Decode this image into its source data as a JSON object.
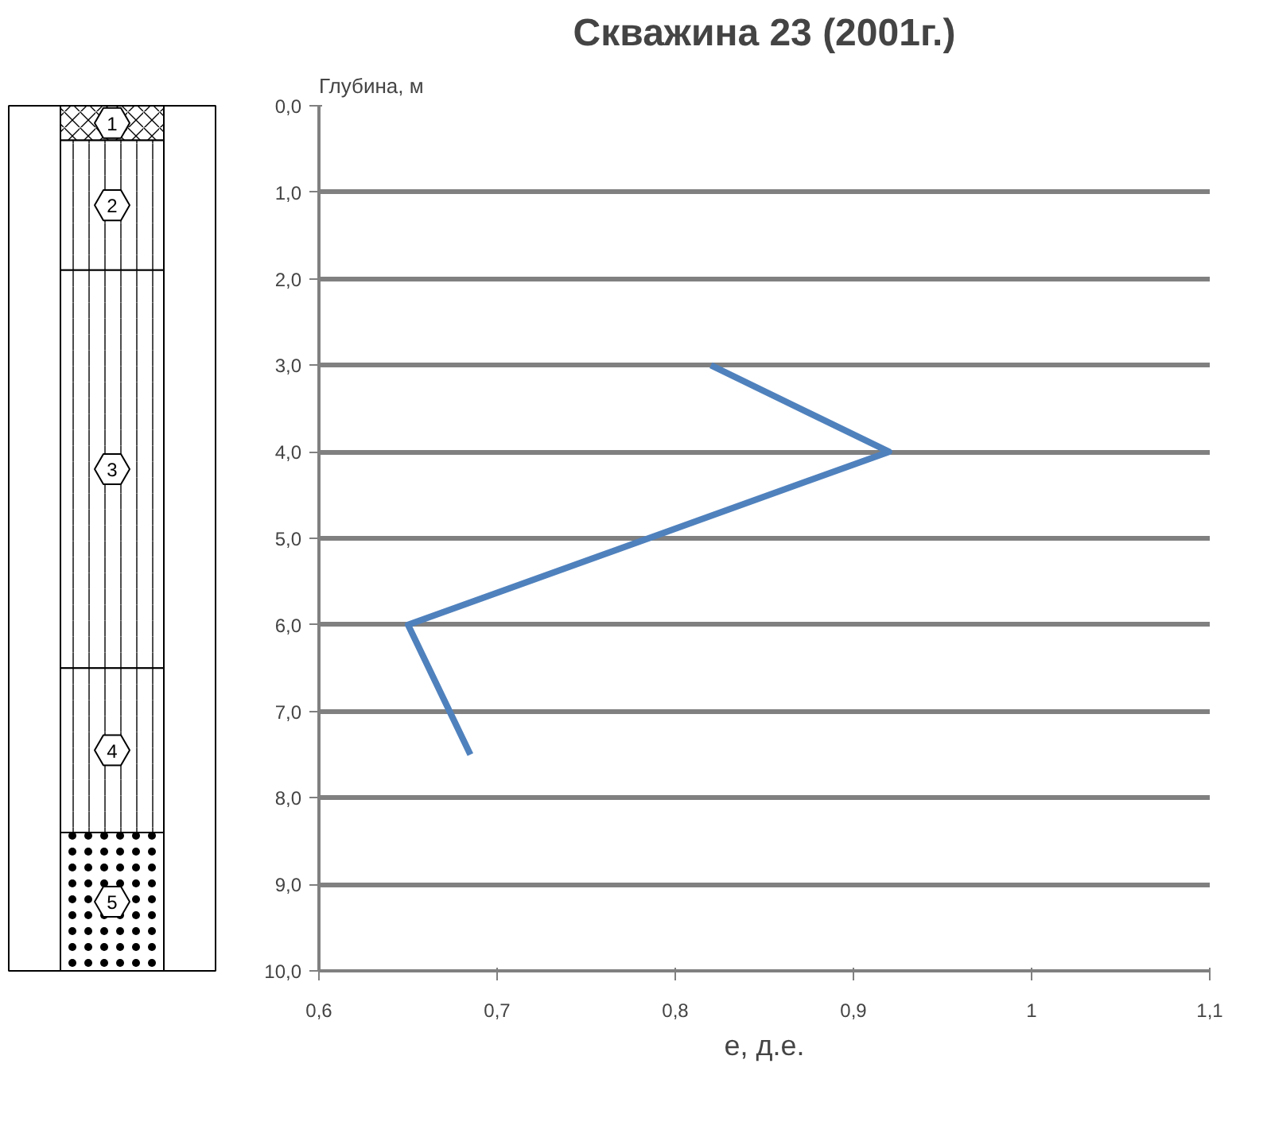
{
  "chart_data": [
    {
      "type": "bar",
      "stacked": true,
      "categories": [
        null
      ],
      "series": [
        {
          "name": "1",
          "color": "#ffffff",
          "values": [
            0.4
          ]
        },
        {
          "name": "2",
          "color": "#ffffff",
          "values": [
            1.5
          ]
        },
        {
          "name": "3",
          "color": "#ffffff",
          "values": [
            4.6
          ]
        },
        {
          "name": "4",
          "color": "#ffffff",
          "values": [
            1.9
          ]
        },
        {
          "name": "5",
          "color": "#ffffff",
          "values": [
            1.6
          ]
        }
      ],
      "ylim": [
        10,
        0
      ],
      "tick_labels": false
    },
    {
      "type": "line",
      "title": "Скважина 23 (2001г.)",
      "xlabel": "е, д.е.",
      "ylabel": "Глубина, м",
      "x": [
        0.82,
        0.92,
        0.65,
        0.685
      ],
      "series": [
        {
          "color": "#4f81bd",
          "values": [
            3.0,
            4.0,
            6.0,
            7.5
          ]
        }
      ],
      "xlim": [
        0.6,
        1.1
      ],
      "xticks": [
        {
          "value": 0.6,
          "label": "0,6"
        },
        {
          "value": 0.7,
          "label": "0,7"
        },
        {
          "value": 0.8,
          "label": "0,8"
        },
        {
          "value": 0.9,
          "label": "0,9"
        },
        1,
        {
          "value": 1.1,
          "label": "1,1"
        }
      ],
      "ylim": [
        10,
        0
      ],
      "yticks": [
        {
          "value": 0,
          "label": "0,0"
        },
        {
          "value": 1,
          "label": "1,0"
        },
        {
          "value": 2,
          "label": "2,0"
        },
        {
          "value": 3,
          "label": "3,0"
        },
        {
          "value": 4,
          "label": "4,0"
        },
        {
          "value": 5,
          "label": "5,0"
        },
        {
          "value": 6,
          "label": "6,0"
        },
        {
          "value": 7,
          "label": "7,0"
        },
        {
          "value": 8,
          "label": "8,0"
        },
        {
          "value": 9,
          "label": "9,0"
        },
        {
          "value": 10,
          "label": "10,0"
        }
      ],
      "grid": "y",
      "line_style": "solid"
    }
  ]
}
